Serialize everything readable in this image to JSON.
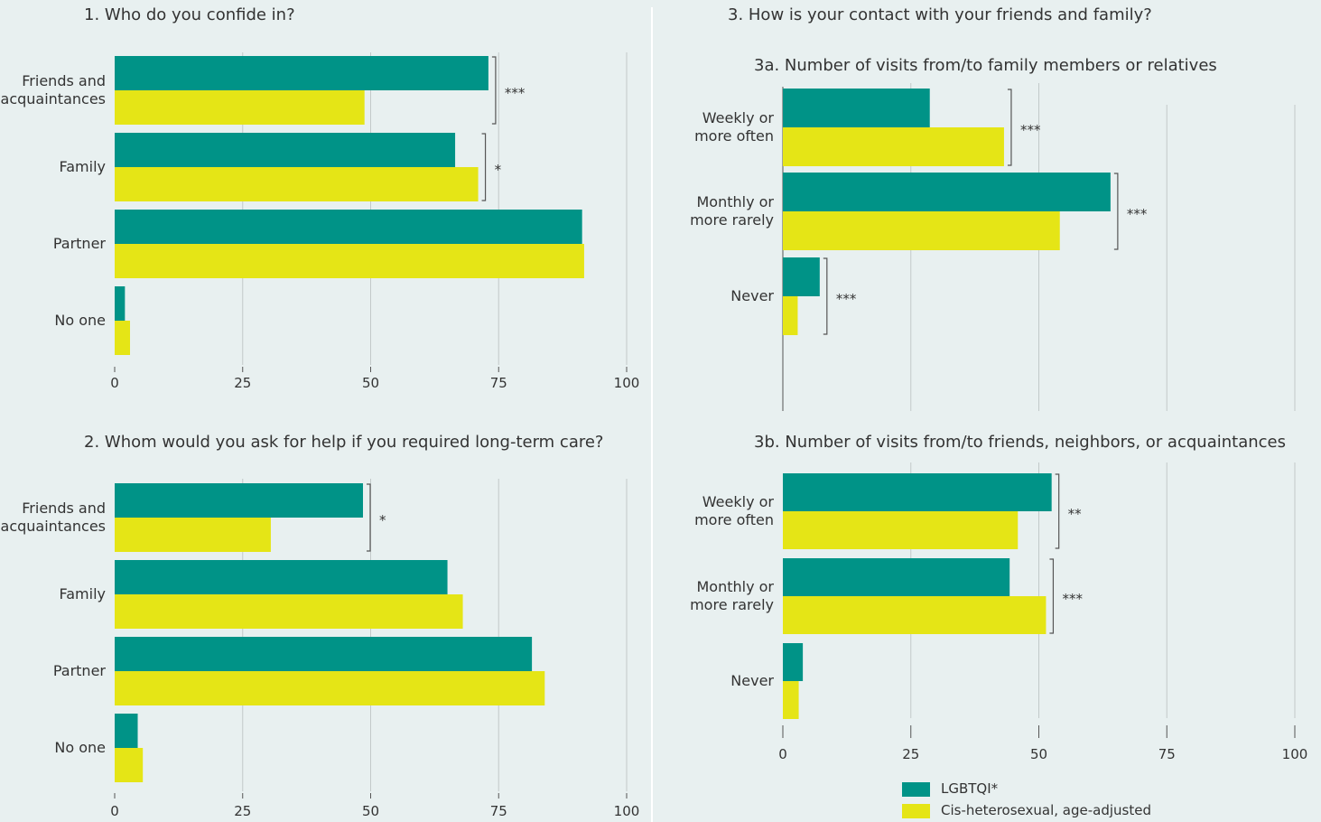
{
  "colors": {
    "lgbtqi": "#009387",
    "cishet": "#e5e516",
    "grid": "#c2c9c9",
    "text": "#333333",
    "background": "#e8f0f0"
  },
  "legend": {
    "lgbtqi": "LGBTQI*",
    "cishet": "Cis-heterosexual, age-adjusted"
  },
  "chart_data": [
    {
      "type": "bar",
      "title": "1.   Who do you confide in?",
      "categories": [
        "Friends and\nacquaintances",
        "Family",
        "Partner",
        "No one"
      ],
      "series": [
        {
          "name": "LGBTQI*",
          "values": [
            73,
            66.5,
            91.3,
            2
          ]
        },
        {
          "name": "Cis-heterosexual, age-adjusted",
          "values": [
            48.8,
            71,
            91.7,
            3
          ]
        }
      ],
      "significance": [
        "***",
        "*",
        "",
        ""
      ],
      "xlim": [
        0,
        100
      ],
      "xticks": [
        "0",
        "25",
        "50",
        "75",
        "100"
      ],
      "grid": true
    },
    {
      "type": "bar",
      "title": "2.   Whom would you ask for help if you required long-term care?",
      "categories": [
        "Friends and\nacquaintances",
        "Family",
        "Partner",
        "No one"
      ],
      "series": [
        {
          "name": "LGBTQI*",
          "values": [
            48.5,
            65,
            81.5,
            4.5
          ]
        },
        {
          "name": "Cis-heterosexual, age-adjusted",
          "values": [
            30.5,
            68,
            84,
            5.5
          ]
        }
      ],
      "significance": [
        "*",
        "",
        "",
        ""
      ],
      "xlim": [
        0,
        100
      ],
      "xticks": [
        "0",
        "25",
        "50",
        "75",
        "100"
      ],
      "grid": true
    },
    {
      "type": "bar",
      "section_title": "3.   How is your contact with your friends and family?",
      "title": "3a. Number of visits from/to family members or relatives",
      "categories": [
        "Weekly or\nmore often",
        "Monthly or\nmore rarely",
        "Never"
      ],
      "series": [
        {
          "name": "LGBTQI*",
          "values": [
            28.7,
            64,
            7.2
          ]
        },
        {
          "name": "Cis-heterosexual, age-adjusted",
          "values": [
            43.2,
            54.1,
            2.9
          ]
        }
      ],
      "significance": [
        "***",
        "***",
        "***"
      ],
      "xlim": [
        0,
        100
      ],
      "grid": true
    },
    {
      "type": "bar",
      "title": "3b. Number of visits from/to friends, neighbors, or acquaintances",
      "categories": [
        "Weekly or\nmore often",
        "Monthly or\nmore rarely",
        "Never"
      ],
      "series": [
        {
          "name": "LGBTQI*",
          "values": [
            52.5,
            44.3,
            3.9
          ]
        },
        {
          "name": "Cis-heterosexual, age-adjusted",
          "values": [
            45.9,
            51.4,
            3.1
          ]
        }
      ],
      "significance": [
        "**",
        "***",
        ""
      ],
      "xlim": [
        0,
        100
      ],
      "xticks": [
        "0",
        "25",
        "50",
        "75",
        "100"
      ],
      "grid": true
    }
  ]
}
